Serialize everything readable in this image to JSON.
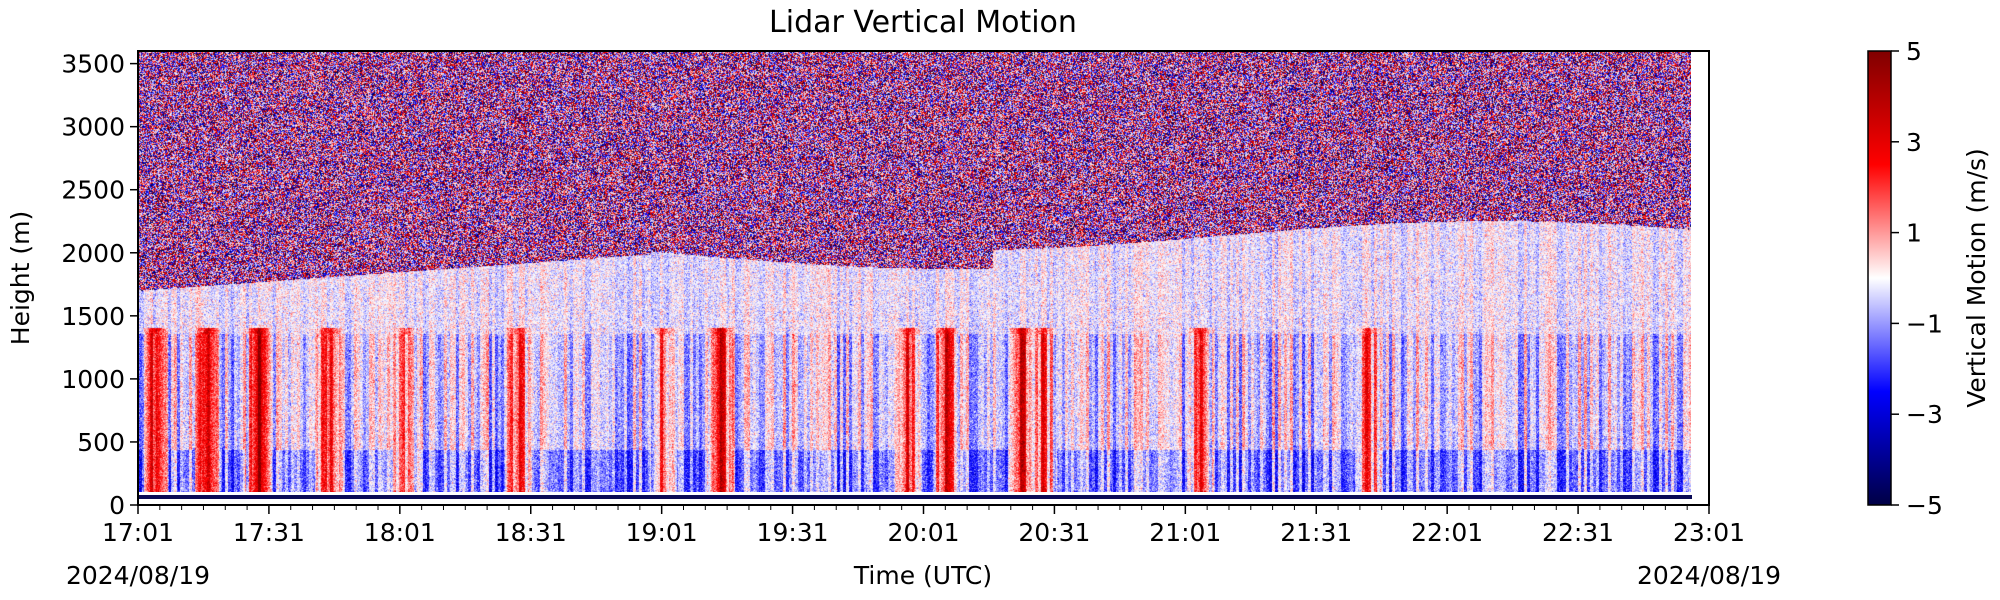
{
  "chart_data": {
    "type": "heatmap",
    "title": "Lidar Vertical Motion",
    "xlabel": "Time (UTC)",
    "ylabel": "Height (m)",
    "x_start_date": "2024/08/19",
    "x_end_date": "2024/08/19",
    "x_ticks": [
      "17:01",
      "17:31",
      "18:01",
      "18:31",
      "19:01",
      "19:31",
      "20:01",
      "20:31",
      "21:01",
      "21:31",
      "22:01",
      "22:31",
      "23:01"
    ],
    "xlim": [
      "17:01",
      "23:01"
    ],
    "y_ticks": [
      0,
      500,
      1000,
      1500,
      2000,
      2500,
      3000,
      3500
    ],
    "ylim": [
      0,
      3600
    ],
    "colorbar": {
      "label": "Vertical Motion (m/s)",
      "ticks": [
        5,
        3,
        1,
        -1,
        -3,
        -5
      ],
      "tick_labels": [
        "5",
        "3",
        "1",
        "−1",
        "−3",
        "−5"
      ],
      "range": [
        -5,
        5
      ],
      "colormap": "seismic",
      "colors": [
        "#000045",
        "#0000ff",
        "#ffffff",
        "#ff0000",
        "#800000"
      ]
    },
    "grid": false
  }
}
